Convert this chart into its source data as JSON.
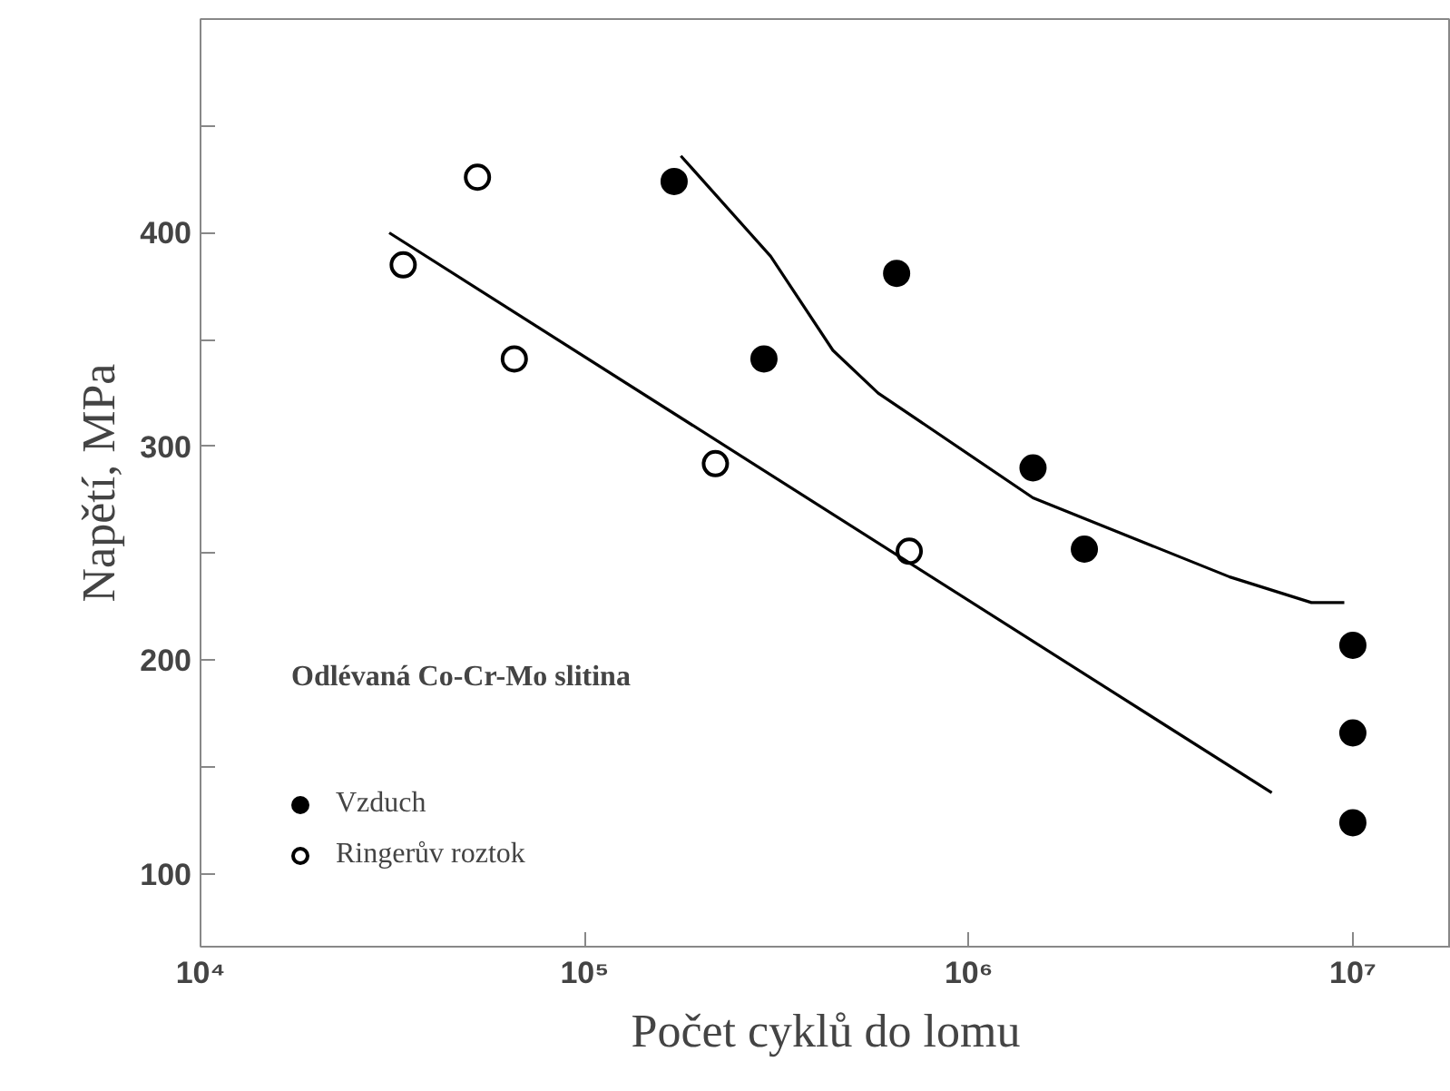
{
  "chart_data": {
    "type": "scatter",
    "xlabel": "Počet cyklů do lomu",
    "ylabel": "Napětí, MPa",
    "log": "x",
    "xlim": [
      10000,
      18000000
    ],
    "ylim": [
      66,
      500
    ],
    "xticks": [
      {
        "value": 10000,
        "label": "10⁴"
      },
      {
        "value": 100000,
        "label": "10⁵"
      },
      {
        "value": 1000000,
        "label": "10⁶"
      },
      {
        "value": 10000000,
        "label": "10⁷"
      }
    ],
    "yticks": [
      100,
      {
        "value": 150,
        "label": null
      },
      200,
      {
        "value": 250,
        "label": null
      },
      300,
      {
        "value": 350,
        "label": null
      },
      400,
      {
        "value": 450,
        "label": null
      }
    ],
    "grid": false,
    "legend": "bottom left",
    "annotations": [
      "Odlévaná Co-Cr-Mo slitina"
    ],
    "series": [
      {
        "name": "Vzduch",
        "marker": "circle",
        "color": "#000000",
        "x": [
          171000,
          293000,
          649000,
          1470000,
          2000000,
          10000000,
          10000000,
          10000000
        ],
        "values": [
          424,
          341,
          381,
          290,
          252,
          207,
          166,
          124
        ]
      },
      {
        "name": "Ringerův roztok",
        "marker": "circle",
        "color": "#ffffff",
        "x": [
          33700,
          52600,
          65600,
          219000,
          700000
        ],
        "values": [
          385,
          426,
          341,
          292,
          251
        ]
      },
      {
        "type": "line",
        "marker": "none",
        "color": "#000000",
        "x": [
          178000,
          305000,
          443000,
          581000,
          1470000,
          4780000,
          7800000,
          9500000
        ],
        "values": [
          436,
          389,
          345,
          325,
          276,
          239,
          227,
          227
        ]
      },
      {
        "type": "line",
        "marker": "none",
        "color": "#000000",
        "x": [
          31000,
          6150000
        ],
        "values": [
          400,
          138
        ]
      }
    ]
  }
}
